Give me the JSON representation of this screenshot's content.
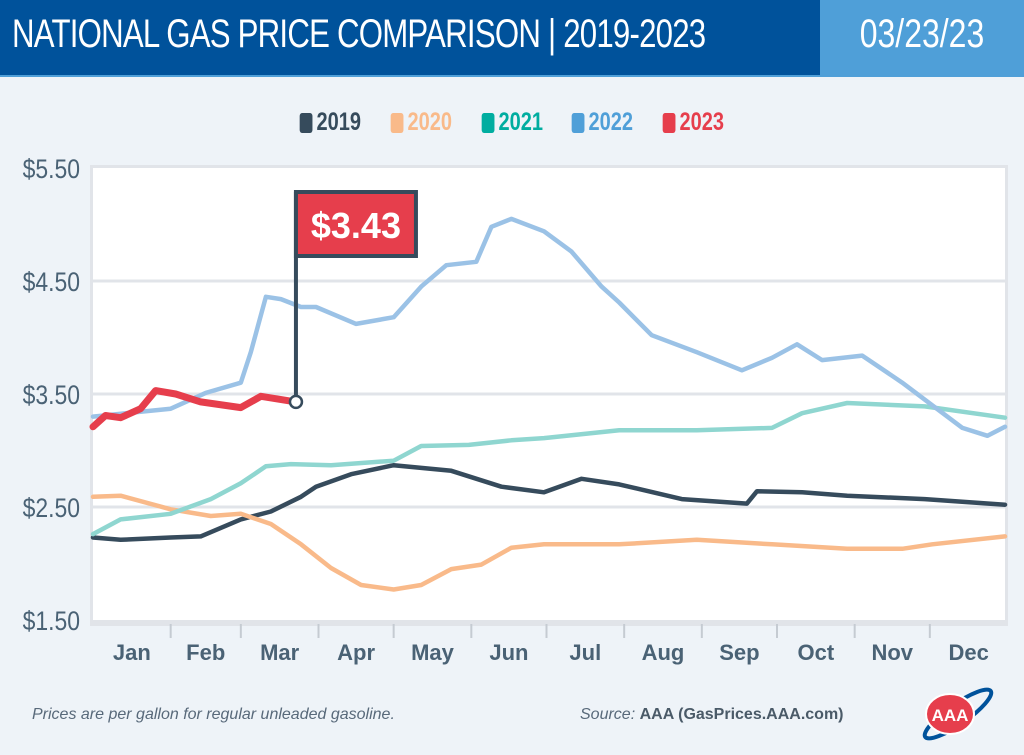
{
  "header": {
    "title": "NATIONAL GAS PRICE COMPARISON | 2019-2023",
    "date": "03/23/23"
  },
  "footer": {
    "note": "Prices are per gallon for regular unleaded gasoline.",
    "source_label": "Source:",
    "source_value": "AAA (GasPrices.AAA.com)",
    "logo_text": "AAA"
  },
  "chart_data": {
    "type": "line",
    "ylim": [
      1.5,
      5.5
    ],
    "y_ticks": [
      "$5.50",
      "$4.50",
      "$3.50",
      "$2.50",
      "$1.50"
    ],
    "y_tick_values": [
      5.5,
      4.5,
      3.5,
      2.5,
      1.5
    ],
    "x_ticks": [
      "Jan",
      "Feb",
      "Mar",
      "Apr",
      "May",
      "Jun",
      "Jul",
      "Aug",
      "Sep",
      "Oct",
      "Nov",
      "Dec"
    ],
    "grid": true,
    "legend_position": "top",
    "annotation": {
      "label": "$3.43",
      "date": "03-23",
      "value": 3.43,
      "color": "#e63e4c"
    },
    "series": [
      {
        "name": "2019",
        "color": "#364b5c",
        "points": [
          [
            "01-01",
            2.23
          ],
          [
            "01-12",
            2.21
          ],
          [
            "02-01",
            2.23
          ],
          [
            "02-13",
            2.24
          ],
          [
            "03-01",
            2.39
          ],
          [
            "03-13",
            2.46
          ],
          [
            "03-25",
            2.59
          ],
          [
            "03-31",
            2.68
          ],
          [
            "04-14",
            2.79
          ],
          [
            "05-01",
            2.87
          ],
          [
            "05-24",
            2.82
          ],
          [
            "06-13",
            2.68
          ],
          [
            "06-30",
            2.63
          ],
          [
            "07-15",
            2.75
          ],
          [
            "07-30",
            2.7
          ],
          [
            "08-24",
            2.57
          ],
          [
            "09-19",
            2.53
          ],
          [
            "09-23",
            2.64
          ],
          [
            "10-11",
            2.63
          ],
          [
            "10-29",
            2.6
          ],
          [
            "11-29",
            2.57
          ],
          [
            "12-31",
            2.52
          ]
        ]
      },
      {
        "name": "2020",
        "color": "#f9ba8a",
        "points": [
          [
            "01-01",
            2.59
          ],
          [
            "01-12",
            2.6
          ],
          [
            "02-01",
            2.48
          ],
          [
            "02-17",
            2.42
          ],
          [
            "03-01",
            2.44
          ],
          [
            "03-13",
            2.35
          ],
          [
            "03-25",
            2.17
          ],
          [
            "04-06",
            1.96
          ],
          [
            "04-18",
            1.81
          ],
          [
            "05-01",
            1.77
          ],
          [
            "05-12",
            1.81
          ],
          [
            "05-24",
            1.95
          ],
          [
            "06-05",
            1.99
          ],
          [
            "06-17",
            2.14
          ],
          [
            "06-30",
            2.17
          ],
          [
            "07-30",
            2.17
          ],
          [
            "08-30",
            2.21
          ],
          [
            "09-29",
            2.17
          ],
          [
            "10-29",
            2.13
          ],
          [
            "11-20",
            2.13
          ],
          [
            "12-02",
            2.17
          ],
          [
            "12-31",
            2.24
          ]
        ]
      },
      {
        "name": "2021",
        "color": "#8fd6d0",
        "legend_color": "#00ada0",
        "points": [
          [
            "01-01",
            2.26
          ],
          [
            "01-12",
            2.39
          ],
          [
            "02-01",
            2.44
          ],
          [
            "02-17",
            2.57
          ],
          [
            "03-01",
            2.71
          ],
          [
            "03-11",
            2.86
          ],
          [
            "03-21",
            2.88
          ],
          [
            "04-06",
            2.87
          ],
          [
            "05-01",
            2.91
          ],
          [
            "05-12",
            3.04
          ],
          [
            "05-31",
            3.05
          ],
          [
            "06-17",
            3.09
          ],
          [
            "06-30",
            3.11
          ],
          [
            "07-30",
            3.18
          ],
          [
            "08-30",
            3.18
          ],
          [
            "09-29",
            3.2
          ],
          [
            "10-11",
            3.33
          ],
          [
            "10-29",
            3.42
          ],
          [
            "11-29",
            3.39
          ],
          [
            "12-31",
            3.29
          ]
        ]
      },
      {
        "name": "2022",
        "color": "#9bc2e6",
        "legend_color": "#4f9fd8",
        "points": [
          [
            "01-01",
            3.3
          ],
          [
            "02-01",
            3.37
          ],
          [
            "02-15",
            3.51
          ],
          [
            "03-01",
            3.6
          ],
          [
            "03-05",
            3.87
          ],
          [
            "03-11",
            4.36
          ],
          [
            "03-17",
            4.34
          ],
          [
            "03-25",
            4.27
          ],
          [
            "03-31",
            4.27
          ],
          [
            "04-16",
            4.12
          ],
          [
            "05-01",
            4.18
          ],
          [
            "05-12",
            4.45
          ],
          [
            "05-22",
            4.64
          ],
          [
            "06-03",
            4.67
          ],
          [
            "06-09",
            4.98
          ],
          [
            "06-17",
            5.05
          ],
          [
            "06-30",
            4.94
          ],
          [
            "07-11",
            4.76
          ],
          [
            "07-23",
            4.45
          ],
          [
            "07-30",
            4.31
          ],
          [
            "08-12",
            4.02
          ],
          [
            "08-30",
            3.87
          ],
          [
            "09-17",
            3.71
          ],
          [
            "09-29",
            3.82
          ],
          [
            "10-09",
            3.94
          ],
          [
            "10-19",
            3.8
          ],
          [
            "11-04",
            3.84
          ],
          [
            "11-20",
            3.6
          ],
          [
            "12-02",
            3.4
          ],
          [
            "12-14",
            3.2
          ],
          [
            "12-24",
            3.13
          ],
          [
            "12-31",
            3.21
          ]
        ]
      },
      {
        "name": "2023",
        "color": "#e63e4c",
        "points": [
          [
            "01-01",
            3.21
          ],
          [
            "01-06",
            3.31
          ],
          [
            "01-12",
            3.29
          ],
          [
            "01-20",
            3.37
          ],
          [
            "01-26",
            3.53
          ],
          [
            "02-03",
            3.5
          ],
          [
            "02-13",
            3.43
          ],
          [
            "03-01",
            3.38
          ],
          [
            "03-09",
            3.48
          ],
          [
            "03-23",
            3.43
          ]
        ]
      }
    ]
  }
}
